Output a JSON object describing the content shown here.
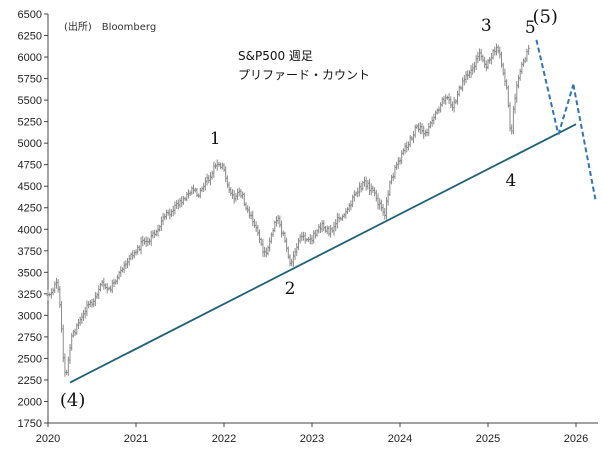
{
  "source": "(出所)　Bloomberg",
  "title_line1": "S&P500 週足",
  "title_line2": "プリファード・カウント",
  "chart_data": {
    "type": "line",
    "title": "S&P500 週足",
    "subtitle": "プリファード・カウント",
    "ylim": [
      1750,
      6500
    ],
    "xlim": [
      2020,
      2026.25
    ],
    "y_ticks": [
      1750,
      2000,
      2250,
      2500,
      2750,
      3000,
      3250,
      3500,
      3750,
      4000,
      4250,
      4500,
      4750,
      5000,
      5250,
      5500,
      5750,
      6000,
      6250,
      6500
    ],
    "x_ticks": [
      "2020",
      "2021",
      "2022",
      "2023",
      "2024",
      "2025",
      "2026"
    ],
    "grid": false,
    "series": [
      {
        "style": "weekly-bars",
        "points": [
          [
            2020.0,
            3230
          ],
          [
            2020.05,
            3300
          ],
          [
            2020.1,
            3380
          ],
          [
            2020.14,
            3100
          ],
          [
            2020.17,
            2550
          ],
          [
            2020.2,
            2300
          ],
          [
            2020.23,
            2480
          ],
          [
            2020.27,
            2750
          ],
          [
            2020.32,
            2850
          ],
          [
            2020.38,
            2950
          ],
          [
            2020.44,
            3100
          ],
          [
            2020.5,
            3150
          ],
          [
            2020.56,
            3250
          ],
          [
            2020.62,
            3380
          ],
          [
            2020.68,
            3300
          ],
          [
            2020.74,
            3350
          ],
          [
            2020.8,
            3450
          ],
          [
            2020.86,
            3550
          ],
          [
            2020.92,
            3650
          ],
          [
            2021.0,
            3750
          ],
          [
            2021.08,
            3850
          ],
          [
            2021.16,
            3900
          ],
          [
            2021.24,
            4000
          ],
          [
            2021.32,
            4150
          ],
          [
            2021.4,
            4200
          ],
          [
            2021.48,
            4300
          ],
          [
            2021.56,
            4380
          ],
          [
            2021.64,
            4450
          ],
          [
            2021.72,
            4400
          ],
          [
            2021.8,
            4550
          ],
          [
            2021.88,
            4700
          ],
          [
            2021.94,
            4750
          ],
          [
            2022.0,
            4700
          ],
          [
            2022.06,
            4450
          ],
          [
            2022.12,
            4350
          ],
          [
            2022.18,
            4450
          ],
          [
            2022.24,
            4300
          ],
          [
            2022.32,
            4100
          ],
          [
            2022.4,
            3900
          ],
          [
            2022.46,
            3700
          ],
          [
            2022.52,
            3850
          ],
          [
            2022.6,
            4150
          ],
          [
            2022.68,
            3900
          ],
          [
            2022.76,
            3600
          ],
          [
            2022.82,
            3800
          ],
          [
            2022.88,
            3950
          ],
          [
            2022.96,
            3850
          ],
          [
            2023.04,
            3950
          ],
          [
            2023.12,
            4050
          ],
          [
            2023.2,
            3950
          ],
          [
            2023.28,
            4100
          ],
          [
            2023.36,
            4150
          ],
          [
            2023.44,
            4300
          ],
          [
            2023.52,
            4450
          ],
          [
            2023.6,
            4550
          ],
          [
            2023.68,
            4450
          ],
          [
            2023.76,
            4300
          ],
          [
            2023.82,
            4150
          ],
          [
            2023.88,
            4500
          ],
          [
            2023.96,
            4750
          ],
          [
            2024.04,
            4900
          ],
          [
            2024.12,
            5050
          ],
          [
            2024.2,
            5200
          ],
          [
            2024.3,
            5100
          ],
          [
            2024.38,
            5300
          ],
          [
            2024.46,
            5450
          ],
          [
            2024.54,
            5550
          ],
          [
            2024.6,
            5400
          ],
          [
            2024.66,
            5600
          ],
          [
            2024.74,
            5750
          ],
          [
            2024.82,
            5850
          ],
          [
            2024.9,
            6050
          ],
          [
            2024.98,
            5900
          ],
          [
            2025.06,
            6050
          ],
          [
            2025.12,
            6100
          ],
          [
            2025.17,
            5800
          ],
          [
            2025.22,
            5600
          ],
          [
            2025.26,
            5050
          ],
          [
            2025.3,
            5500
          ],
          [
            2025.36,
            5800
          ],
          [
            2025.42,
            6000
          ],
          [
            2025.48,
            6150
          ]
        ]
      },
      {
        "style": "trendline",
        "points": [
          [
            2020.25,
            2220
          ],
          [
            2026.0,
            5220
          ]
        ]
      },
      {
        "style": "projection",
        "points": [
          [
            2025.55,
            6200
          ],
          [
            2025.8,
            5100
          ],
          [
            2025.97,
            5680
          ],
          [
            2026.22,
            4350
          ]
        ]
      }
    ],
    "annotations": [
      {
        "text": "1",
        "x": 2021.9,
        "y": 4990
      },
      {
        "text": "2",
        "x": 2022.75,
        "y": 3250
      },
      {
        "text": "3",
        "x": 2024.98,
        "y": 6300
      },
      {
        "text": "4",
        "x": 2025.26,
        "y": 4500
      },
      {
        "text": "5",
        "x": 2025.48,
        "y": 6280
      },
      {
        "text": "(5)",
        "x": 2025.65,
        "y": 6400
      },
      {
        "text": "(4)",
        "x": 2020.28,
        "y": 1950
      }
    ]
  }
}
